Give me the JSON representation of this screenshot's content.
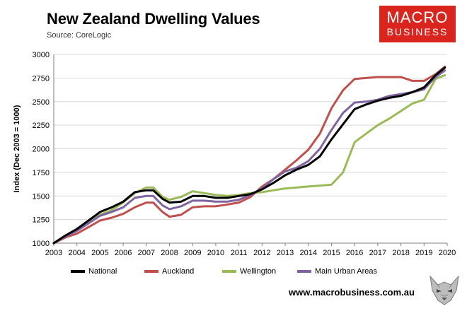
{
  "header": {
    "title": "New Zealand Dwelling Values",
    "source": "Source: CoreLogic"
  },
  "logo": {
    "line1": "MACRO",
    "line2": "BUSINESS"
  },
  "footer": {
    "url": "www.macrobusiness.com.au"
  },
  "colors": {
    "National": "#000000",
    "Auckland": "#c0504d",
    "Wellington": "#9bbb59",
    "Main Urban Areas": "#8064a2",
    "logo_bg": "#d9251d",
    "grid": "#d9d9d9"
  },
  "chart_data": {
    "type": "line",
    "title": "New Zealand Dwelling Values",
    "xlabel": "",
    "ylabel": "Index (Dec 2003 = 1000)",
    "xlim": [
      2003,
      2020
    ],
    "ylim": [
      1000,
      3000
    ],
    "yticks": [
      1000,
      1250,
      1500,
      1750,
      2000,
      2250,
      2500,
      2750,
      3000
    ],
    "ytick_labels": [
      "1000",
      "1250",
      "1500",
      "1750",
      "2000",
      "2250",
      "2500",
      "2750",
      "3000"
    ],
    "xticks": [
      2003,
      2004,
      2005,
      2006,
      2007,
      2008,
      2009,
      2010,
      2011,
      2012,
      2013,
      2014,
      2015,
      2016,
      2017,
      2018,
      2019,
      2020
    ],
    "xtick_labels": [
      "2003",
      "2004",
      "2005",
      "2006",
      "2007",
      "2008",
      "2009",
      "2010",
      "2011",
      "2012",
      "2013",
      "2014",
      "2015",
      "2016",
      "2017",
      "2018",
      "2019",
      "2020"
    ],
    "grid": "horizontal",
    "legend_position": "bottom",
    "series": [
      {
        "name": "National",
        "x": [
          2003.0,
          2003.5,
          2004.0,
          2004.5,
          2005.0,
          2005.5,
          2006.0,
          2006.5,
          2007.0,
          2007.3,
          2007.7,
          2008.0,
          2008.5,
          2009.0,
          2009.5,
          2010.0,
          2010.5,
          2011.0,
          2011.5,
          2012.0,
          2012.5,
          2013.0,
          2013.5,
          2014.0,
          2014.5,
          2015.0,
          2015.5,
          2016.0,
          2016.5,
          2017.0,
          2017.5,
          2018.0,
          2018.5,
          2019.0,
          2019.5,
          2019.9
        ],
        "values": [
          1000,
          1080,
          1150,
          1240,
          1330,
          1380,
          1440,
          1540,
          1560,
          1560,
          1470,
          1430,
          1440,
          1500,
          1500,
          1480,
          1480,
          1500,
          1520,
          1570,
          1640,
          1720,
          1780,
          1830,
          1920,
          2100,
          2260,
          2420,
          2470,
          2510,
          2540,
          2560,
          2600,
          2650,
          2780,
          2860
        ]
      },
      {
        "name": "Auckland",
        "x": [
          2003.0,
          2003.5,
          2004.0,
          2004.5,
          2005.0,
          2005.5,
          2006.0,
          2006.5,
          2007.0,
          2007.3,
          2007.7,
          2008.0,
          2008.5,
          2009.0,
          2009.5,
          2010.0,
          2010.5,
          2011.0,
          2011.5,
          2012.0,
          2012.5,
          2013.0,
          2013.5,
          2014.0,
          2014.5,
          2015.0,
          2015.5,
          2016.0,
          2016.5,
          2017.0,
          2017.5,
          2018.0,
          2018.5,
          2019.0,
          2019.5,
          2019.9
        ],
        "values": [
          1000,
          1060,
          1100,
          1170,
          1240,
          1270,
          1310,
          1380,
          1430,
          1430,
          1330,
          1280,
          1300,
          1380,
          1390,
          1390,
          1410,
          1430,
          1490,
          1600,
          1680,
          1780,
          1880,
          1990,
          2160,
          2430,
          2620,
          2740,
          2750,
          2760,
          2760,
          2760,
          2720,
          2720,
          2790,
          2870
        ]
      },
      {
        "name": "Wellington",
        "x": [
          2003.0,
          2003.5,
          2004.0,
          2004.5,
          2005.0,
          2005.5,
          2006.0,
          2006.5,
          2007.0,
          2007.3,
          2007.7,
          2008.0,
          2008.5,
          2009.0,
          2009.5,
          2010.0,
          2010.5,
          2011.0,
          2011.5,
          2012.0,
          2012.5,
          2013.0,
          2013.5,
          2014.0,
          2014.5,
          2015.0,
          2015.5,
          2016.0,
          2016.5,
          2017.0,
          2017.5,
          2018.0,
          2018.5,
          2019.0,
          2019.5,
          2019.9
        ],
        "values": [
          1000,
          1080,
          1150,
          1220,
          1300,
          1350,
          1430,
          1530,
          1590,
          1590,
          1490,
          1460,
          1490,
          1550,
          1530,
          1510,
          1500,
          1510,
          1530,
          1540,
          1560,
          1580,
          1590,
          1600,
          1610,
          1620,
          1750,
          2070,
          2160,
          2250,
          2320,
          2400,
          2480,
          2520,
          2740,
          2780
        ]
      },
      {
        "name": "Main Urban Areas",
        "x": [
          2003.0,
          2003.5,
          2004.0,
          2004.5,
          2005.0,
          2005.5,
          2006.0,
          2006.5,
          2007.0,
          2007.3,
          2007.7,
          2008.0,
          2008.5,
          2009.0,
          2009.5,
          2010.0,
          2010.5,
          2011.0,
          2011.5,
          2012.0,
          2012.5,
          2013.0,
          2013.5,
          2014.0,
          2014.5,
          2015.0,
          2015.5,
          2016.0,
          2016.5,
          2017.0,
          2017.5,
          2018.0,
          2018.5,
          2019.0,
          2019.5,
          2019.9
        ],
        "values": [
          1000,
          1070,
          1130,
          1210,
          1290,
          1330,
          1380,
          1480,
          1500,
          1500,
          1400,
          1360,
          1390,
          1450,
          1450,
          1440,
          1440,
          1460,
          1510,
          1580,
          1680,
          1760,
          1800,
          1870,
          2000,
          2200,
          2380,
          2490,
          2500,
          2520,
          2560,
          2580,
          2600,
          2630,
          2760,
          2830
        ]
      }
    ]
  }
}
